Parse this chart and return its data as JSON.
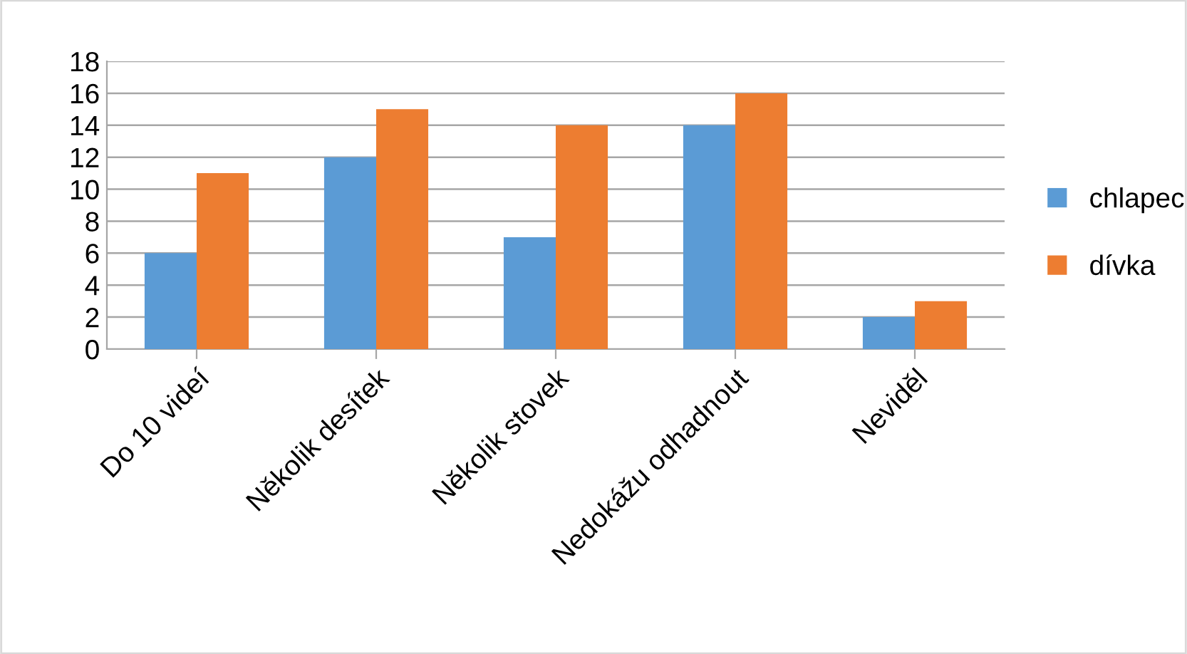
{
  "chart_data": {
    "type": "bar",
    "categories": [
      "Do 10 videí",
      "Několik desítek",
      "Několik stovek",
      "Nedokážu odhadnout",
      "Neviděl"
    ],
    "series": [
      {
        "name": "chlapec",
        "color": "#5b9bd5",
        "values": [
          6,
          12,
          7,
          14,
          2
        ]
      },
      {
        "name": "dívka",
        "color": "#ed7d31",
        "values": [
          11,
          15,
          14,
          16,
          3
        ]
      }
    ],
    "ylim": [
      0,
      18
    ],
    "yticks": [
      0,
      2,
      4,
      6,
      8,
      10,
      12,
      14,
      16,
      18
    ],
    "grid": "y",
    "legend": "right"
  }
}
